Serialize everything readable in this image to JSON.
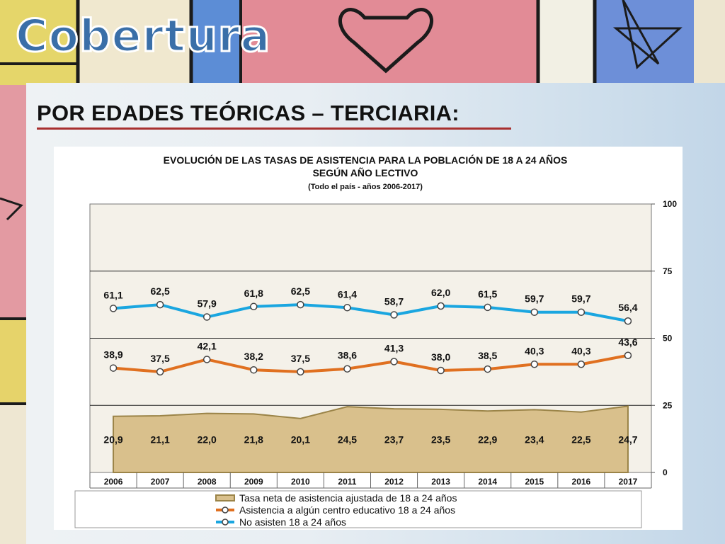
{
  "slide": {
    "title": "Cobertura",
    "heading": "POR EDADES TEÓRICAS – TERCIARIA:"
  },
  "colors": {
    "title_fill": "#3a6fa8",
    "heading_rule": "#a8302f",
    "area_fill": "#d9c08c",
    "area_border": "#9b8448",
    "orange_series": "#e07020",
    "blue_series": "#1aa6e0"
  },
  "chart_data": {
    "type": "line",
    "title": "EVOLUCIÓN DE LAS TASAS DE ASISTENCIA PARA LA POBLACIÓN DE 18 A 24 AÑOS",
    "title2": "SEGÚN AÑO LECTIVO",
    "subtitle": "(Todo el país  - años 2006-2017)",
    "categories": [
      "2006",
      "2007",
      "2008",
      "2009",
      "2010",
      "2011",
      "2012",
      "2013",
      "2014",
      "2015",
      "2016",
      "2017"
    ],
    "y_ticks": [
      "0",
      "25",
      "50",
      "75",
      "100"
    ],
    "ylim": [
      0,
      100
    ],
    "y_axis_side": "right",
    "grid": "horizontal",
    "legend_position": "bottom",
    "series": [
      {
        "name": "Tasa neta de asistencia ajustada de 18 a 24 años",
        "kind": "area",
        "values": [
          20.9,
          21.1,
          22.0,
          21.8,
          20.1,
          24.5,
          23.7,
          23.5,
          22.9,
          23.4,
          22.5,
          24.7
        ],
        "labels": [
          "20,9",
          "21,1",
          "22,0",
          "21,8",
          "20,1",
          "24,5",
          "23,7",
          "23,5",
          "22,9",
          "23,4",
          "22,5",
          "24,7"
        ]
      },
      {
        "name": "Asistencia a algún centro educativo 18 a 24 años",
        "kind": "line",
        "values": [
          38.9,
          37.5,
          42.1,
          38.2,
          37.5,
          38.6,
          41.3,
          38.0,
          38.5,
          40.3,
          40.3,
          43.6
        ],
        "labels": [
          "38,9",
          "37,5",
          "42,1",
          "38,2",
          "37,5",
          "38,6",
          "41,3",
          "38,0",
          "38,5",
          "40,3",
          "40,3",
          "43,6"
        ]
      },
      {
        "name": "No asisten 18 a 24 años",
        "kind": "line",
        "values": [
          61.1,
          62.5,
          57.9,
          61.8,
          62.5,
          61.4,
          58.7,
          62.0,
          61.5,
          59.7,
          59.7,
          56.4
        ],
        "labels": [
          "61,1",
          "62,5",
          "57,9",
          "61,8",
          "62,5",
          "61,4",
          "58,7",
          "62,0",
          "61,5",
          "59,7",
          "59,7",
          "56,4"
        ]
      }
    ]
  }
}
